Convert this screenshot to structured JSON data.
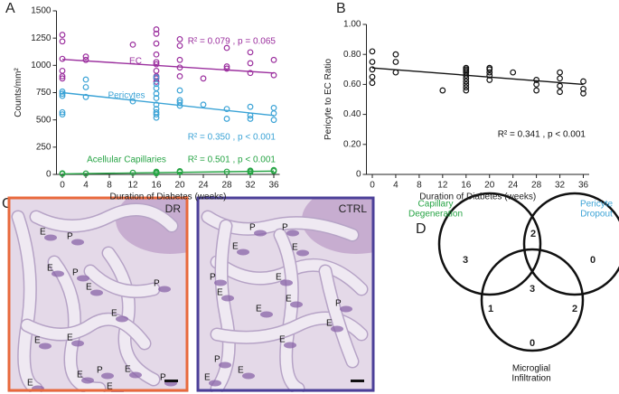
{
  "chart_data": [
    {
      "type": "scatter",
      "panel": "A",
      "x_label": "Duration of Diabetes (weeks)",
      "y_label": "Counts/mm²",
      "xlim": [
        -1,
        37
      ],
      "ylim": [
        0,
        1500
      ],
      "xticks": [
        0,
        4,
        8,
        12,
        16,
        20,
        24,
        28,
        32,
        36
      ],
      "yticks": [
        0,
        250,
        500,
        750,
        1000,
        1250,
        1500
      ],
      "series": [
        {
          "name": "EC",
          "color": "#9b2f9e",
          "x": [
            0,
            0,
            0,
            0,
            0,
            0,
            4,
            4,
            12,
            16,
            16,
            16,
            16,
            16,
            16,
            16,
            16,
            16,
            16,
            20,
            20,
            20,
            20,
            20,
            24,
            28,
            28,
            28,
            32,
            32,
            32,
            36,
            36
          ],
          "values": [
            1280,
            1220,
            1060,
            950,
            900,
            880,
            1080,
            1050,
            1190,
            1330,
            1290,
            1200,
            1100,
            1030,
            1010,
            950,
            900,
            880,
            850,
            1240,
            1180,
            1050,
            980,
            900,
            880,
            1160,
            990,
            970,
            1120,
            1020,
            930,
            1050,
            910
          ],
          "fit": {
            "x": [
              0,
              36
            ],
            "values": [
              1055,
              930
            ]
          }
        },
        {
          "name": "Pericytes",
          "color": "#3ba3d6",
          "x": [
            0,
            0,
            0,
            0,
            0,
            4,
            4,
            4,
            12,
            16,
            16,
            16,
            16,
            16,
            16,
            16,
            16,
            16,
            16,
            20,
            20,
            20,
            20,
            24,
            28,
            28,
            32,
            32,
            32,
            36,
            36,
            36
          ],
          "values": [
            760,
            740,
            720,
            570,
            550,
            870,
            800,
            710,
            670,
            890,
            830,
            790,
            740,
            700,
            640,
            600,
            570,
            550,
            520,
            770,
            680,
            660,
            630,
            640,
            600,
            510,
            620,
            540,
            510,
            610,
            560,
            500
          ],
          "fit": {
            "x": [
              0,
              36
            ],
            "values": [
              750,
              540
            ]
          }
        },
        {
          "name": "Acellular Capillaries",
          "color": "#27a445",
          "x": [
            0,
            0,
            4,
            12,
            16,
            16,
            16,
            16,
            20,
            20,
            20,
            28,
            32,
            32,
            32,
            36,
            36
          ],
          "values": [
            5,
            10,
            8,
            15,
            20,
            25,
            15,
            10,
            25,
            30,
            20,
            25,
            35,
            30,
            20,
            40,
            30
          ],
          "fit": {
            "x": [
              0,
              36
            ],
            "values": [
              5,
              30
            ]
          }
        }
      ],
      "annotations": [
        {
          "text": "R² = 0.079 , p = 0.065",
          "color": "#9b2f9e"
        },
        {
          "text": "R² = 0.350 , p < 0.001",
          "color": "#3ba3d6"
        },
        {
          "text": "R² = 0.501 , p < 0.001",
          "color": "#27a445"
        }
      ]
    },
    {
      "type": "scatter",
      "panel": "B",
      "x_label": "Duration of Diabetes (weeks)",
      "y_label": "Pericyte to EC Ratio",
      "xlim": [
        -1,
        37
      ],
      "ylim": [
        0,
        1
      ],
      "xticks": [
        0,
        4,
        8,
        12,
        16,
        20,
        24,
        28,
        32,
        36
      ],
      "yticks": [
        0,
        {
          "value": 0.2,
          "label": "0.20"
        },
        {
          "value": 0.4,
          "label": "0.40"
        },
        {
          "value": 0.6,
          "label": "0.60"
        },
        {
          "value": 0.8,
          "label": "0.80"
        },
        {
          "value": 1,
          "label": "1.00"
        }
      ],
      "series": [
        {
          "color": "#111111",
          "x": [
            0,
            0,
            0,
            0,
            0,
            4,
            4,
            4,
            12,
            16,
            16,
            16,
            16,
            16,
            16,
            16,
            16,
            16,
            16,
            20,
            20,
            20,
            20,
            20,
            24,
            28,
            28,
            28,
            32,
            32,
            32,
            32,
            36,
            36,
            36
          ],
          "values": [
            0.82,
            0.75,
            0.7,
            0.65,
            0.61,
            0.8,
            0.75,
            0.68,
            0.56,
            0.71,
            0.7,
            0.69,
            0.68,
            0.66,
            0.64,
            0.62,
            0.6,
            0.58,
            0.56,
            0.71,
            0.7,
            0.68,
            0.66,
            0.63,
            0.68,
            0.63,
            0.6,
            0.56,
            0.68,
            0.64,
            0.59,
            0.55,
            0.62,
            0.57,
            0.54
          ],
          "fit": {
            "x": [
              0,
              36
            ],
            "values": [
              0.71,
              0.6
            ]
          }
        }
      ],
      "annotations": [
        {
          "text": "R² = 0.341 , p < 0.001",
          "color": "#111111"
        }
      ]
    }
  ],
  "panel_c": {
    "panel": "C",
    "images": [
      {
        "tag": "DR",
        "border": "#e8693c",
        "labels": [
          "E",
          "P",
          "E",
          "P",
          "E",
          "P",
          "E",
          "E",
          "E",
          "P",
          "E",
          "E",
          "E",
          "P",
          "E"
        ]
      },
      {
        "tag": "CTRL",
        "border": "#4b3f98",
        "labels": [
          "P",
          "P",
          "E",
          "E",
          "P",
          "E",
          "E",
          "E",
          "E",
          "P",
          "E",
          "E",
          "P",
          "E",
          "E"
        ]
      }
    ]
  },
  "panel_d": {
    "panel": "D",
    "sets": [
      {
        "lines": [
          "Capillary",
          "Degeneration"
        ],
        "color": "#27a445"
      },
      {
        "lines": [
          "Pericyte",
          "Dropout"
        ],
        "color": "#3ba3d6"
      },
      {
        "lines": [
          "Microglial",
          "Infiltration"
        ],
        "color": "#111111"
      }
    ],
    "counts": [
      3,
      2,
      0,
      3,
      1,
      2,
      0
    ]
  }
}
